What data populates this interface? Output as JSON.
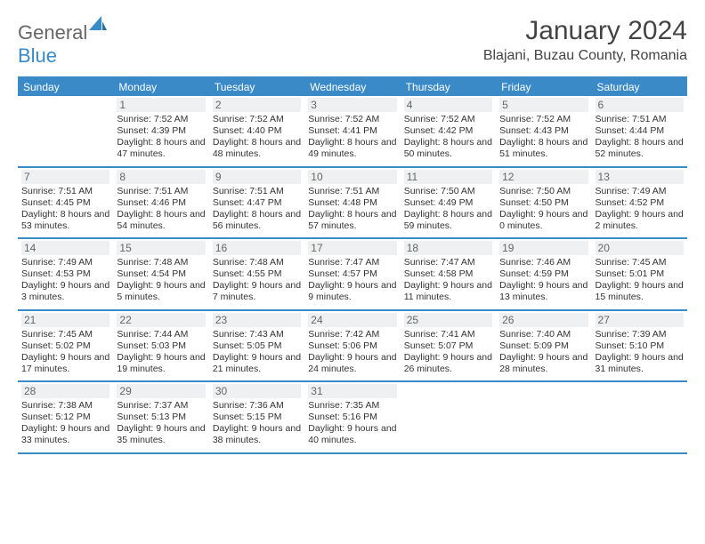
{
  "brand": {
    "part1": "General",
    "part2": "Blue"
  },
  "title": "January 2024",
  "location": "Blajani, Buzau County, Romania",
  "colors": {
    "accent": "#3a8ac8",
    "header_bg": "#3a8ac8",
    "header_text": "#ffffff",
    "daynum_bg": "#eef0f2",
    "text": "#333333",
    "page_bg": "#ffffff"
  },
  "day_headers": [
    "Sunday",
    "Monday",
    "Tuesday",
    "Wednesday",
    "Thursday",
    "Friday",
    "Saturday"
  ],
  "weeks": [
    [
      {
        "n": "",
        "sr": "",
        "ss": "",
        "dl": ""
      },
      {
        "n": "1",
        "sr": "Sunrise: 7:52 AM",
        "ss": "Sunset: 4:39 PM",
        "dl": "Daylight: 8 hours and 47 minutes."
      },
      {
        "n": "2",
        "sr": "Sunrise: 7:52 AM",
        "ss": "Sunset: 4:40 PM",
        "dl": "Daylight: 8 hours and 48 minutes."
      },
      {
        "n": "3",
        "sr": "Sunrise: 7:52 AM",
        "ss": "Sunset: 4:41 PM",
        "dl": "Daylight: 8 hours and 49 minutes."
      },
      {
        "n": "4",
        "sr": "Sunrise: 7:52 AM",
        "ss": "Sunset: 4:42 PM",
        "dl": "Daylight: 8 hours and 50 minutes."
      },
      {
        "n": "5",
        "sr": "Sunrise: 7:52 AM",
        "ss": "Sunset: 4:43 PM",
        "dl": "Daylight: 8 hours and 51 minutes."
      },
      {
        "n": "6",
        "sr": "Sunrise: 7:51 AM",
        "ss": "Sunset: 4:44 PM",
        "dl": "Daylight: 8 hours and 52 minutes."
      }
    ],
    [
      {
        "n": "7",
        "sr": "Sunrise: 7:51 AM",
        "ss": "Sunset: 4:45 PM",
        "dl": "Daylight: 8 hours and 53 minutes."
      },
      {
        "n": "8",
        "sr": "Sunrise: 7:51 AM",
        "ss": "Sunset: 4:46 PM",
        "dl": "Daylight: 8 hours and 54 minutes."
      },
      {
        "n": "9",
        "sr": "Sunrise: 7:51 AM",
        "ss": "Sunset: 4:47 PM",
        "dl": "Daylight: 8 hours and 56 minutes."
      },
      {
        "n": "10",
        "sr": "Sunrise: 7:51 AM",
        "ss": "Sunset: 4:48 PM",
        "dl": "Daylight: 8 hours and 57 minutes."
      },
      {
        "n": "11",
        "sr": "Sunrise: 7:50 AM",
        "ss": "Sunset: 4:49 PM",
        "dl": "Daylight: 8 hours and 59 minutes."
      },
      {
        "n": "12",
        "sr": "Sunrise: 7:50 AM",
        "ss": "Sunset: 4:50 PM",
        "dl": "Daylight: 9 hours and 0 minutes."
      },
      {
        "n": "13",
        "sr": "Sunrise: 7:49 AM",
        "ss": "Sunset: 4:52 PM",
        "dl": "Daylight: 9 hours and 2 minutes."
      }
    ],
    [
      {
        "n": "14",
        "sr": "Sunrise: 7:49 AM",
        "ss": "Sunset: 4:53 PM",
        "dl": "Daylight: 9 hours and 3 minutes."
      },
      {
        "n": "15",
        "sr": "Sunrise: 7:48 AM",
        "ss": "Sunset: 4:54 PM",
        "dl": "Daylight: 9 hours and 5 minutes."
      },
      {
        "n": "16",
        "sr": "Sunrise: 7:48 AM",
        "ss": "Sunset: 4:55 PM",
        "dl": "Daylight: 9 hours and 7 minutes."
      },
      {
        "n": "17",
        "sr": "Sunrise: 7:47 AM",
        "ss": "Sunset: 4:57 PM",
        "dl": "Daylight: 9 hours and 9 minutes."
      },
      {
        "n": "18",
        "sr": "Sunrise: 7:47 AM",
        "ss": "Sunset: 4:58 PM",
        "dl": "Daylight: 9 hours and 11 minutes."
      },
      {
        "n": "19",
        "sr": "Sunrise: 7:46 AM",
        "ss": "Sunset: 4:59 PM",
        "dl": "Daylight: 9 hours and 13 minutes."
      },
      {
        "n": "20",
        "sr": "Sunrise: 7:45 AM",
        "ss": "Sunset: 5:01 PM",
        "dl": "Daylight: 9 hours and 15 minutes."
      }
    ],
    [
      {
        "n": "21",
        "sr": "Sunrise: 7:45 AM",
        "ss": "Sunset: 5:02 PM",
        "dl": "Daylight: 9 hours and 17 minutes."
      },
      {
        "n": "22",
        "sr": "Sunrise: 7:44 AM",
        "ss": "Sunset: 5:03 PM",
        "dl": "Daylight: 9 hours and 19 minutes."
      },
      {
        "n": "23",
        "sr": "Sunrise: 7:43 AM",
        "ss": "Sunset: 5:05 PM",
        "dl": "Daylight: 9 hours and 21 minutes."
      },
      {
        "n": "24",
        "sr": "Sunrise: 7:42 AM",
        "ss": "Sunset: 5:06 PM",
        "dl": "Daylight: 9 hours and 24 minutes."
      },
      {
        "n": "25",
        "sr": "Sunrise: 7:41 AM",
        "ss": "Sunset: 5:07 PM",
        "dl": "Daylight: 9 hours and 26 minutes."
      },
      {
        "n": "26",
        "sr": "Sunrise: 7:40 AM",
        "ss": "Sunset: 5:09 PM",
        "dl": "Daylight: 9 hours and 28 minutes."
      },
      {
        "n": "27",
        "sr": "Sunrise: 7:39 AM",
        "ss": "Sunset: 5:10 PM",
        "dl": "Daylight: 9 hours and 31 minutes."
      }
    ],
    [
      {
        "n": "28",
        "sr": "Sunrise: 7:38 AM",
        "ss": "Sunset: 5:12 PM",
        "dl": "Daylight: 9 hours and 33 minutes."
      },
      {
        "n": "29",
        "sr": "Sunrise: 7:37 AM",
        "ss": "Sunset: 5:13 PM",
        "dl": "Daylight: 9 hours and 35 minutes."
      },
      {
        "n": "30",
        "sr": "Sunrise: 7:36 AM",
        "ss": "Sunset: 5:15 PM",
        "dl": "Daylight: 9 hours and 38 minutes."
      },
      {
        "n": "31",
        "sr": "Sunrise: 7:35 AM",
        "ss": "Sunset: 5:16 PM",
        "dl": "Daylight: 9 hours and 40 minutes."
      },
      {
        "n": "",
        "sr": "",
        "ss": "",
        "dl": ""
      },
      {
        "n": "",
        "sr": "",
        "ss": "",
        "dl": ""
      },
      {
        "n": "",
        "sr": "",
        "ss": "",
        "dl": ""
      }
    ]
  ]
}
